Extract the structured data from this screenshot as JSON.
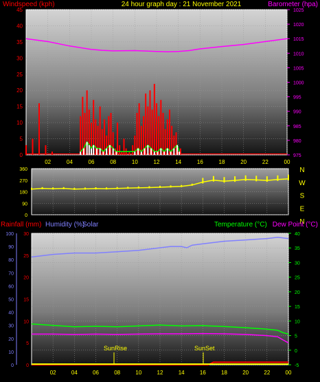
{
  "header": {
    "windspeed_label": "Windspeed (kph)",
    "title": "24 hour graph day : 21 November 2021",
    "barometer_label": "Barometer (hpa)"
  },
  "middle": {
    "direction_labels": [
      "N",
      "W",
      "S",
      "E",
      "N"
    ]
  },
  "lower_header": {
    "rainfall_label": "Rainfall (mm)",
    "humidity_label": "Humidity (%)",
    "solar_label": "Solar",
    "temperature_label": "Temperature (°C)",
    "dewpoint_label": "Dew Point (°C)"
  },
  "annotations": {
    "sunrise": "SunRise",
    "sunset": "SunSet"
  },
  "colors": {
    "wind": "#ff0000",
    "gust_light": "#ffffff",
    "solar": "#ffff00",
    "barometer": "#ff00ff",
    "humidity": "#8080ff",
    "temperature": "#00ff00",
    "dewpoint": "#ff00ff",
    "rain": "#ff0000"
  },
  "chart_data": [
    {
      "type": "line",
      "title": "24 hour graph day : 21 November 2021",
      "x_ticks": [
        "02",
        "04",
        "06",
        "08",
        "10",
        "12",
        "14",
        "16",
        "18",
        "20",
        "22",
        "00"
      ],
      "left_axis": {
        "label": "Windspeed (kph)",
        "ylim": [
          0,
          45
        ],
        "ticks": [
          0,
          5,
          10,
          15,
          20,
          25,
          30,
          35,
          40,
          45
        ]
      },
      "right_axis": {
        "label": "Barometer (hpa)",
        "ylim": [
          975,
          1025
        ],
        "ticks": [
          975,
          980,
          985,
          990,
          995,
          1000,
          1005,
          1010,
          1015,
          1020,
          1025
        ]
      },
      "series": [
        {
          "name": "Barometer (hpa)",
          "axis": "right",
          "x": [
            0,
            2,
            4,
            6,
            7,
            8,
            10,
            12,
            13,
            14,
            15,
            16,
            18,
            20,
            22,
            24
          ],
          "values": [
            1015,
            1014,
            1012.5,
            1011.3,
            1011,
            1010.8,
            1010.9,
            1010.6,
            1010.5,
            1010.6,
            1010.9,
            1011.5,
            1012.3,
            1013,
            1014,
            1015
          ]
        },
        {
          "name": "Windspeed (kph)",
          "axis": "left",
          "x": [
            0,
            0.6,
            1.2,
            1.8,
            2.4,
            5.0,
            5.2,
            5.4,
            5.6,
            5.8,
            6.0,
            6.2,
            6.4,
            6.6,
            6.8,
            7.0,
            7.2,
            7.4,
            7.6,
            7.8,
            8.0,
            8.2,
            8.4,
            8.6,
            8.8,
            9.0,
            9.2,
            9.5,
            9.8,
            10.0,
            10.2,
            10.4,
            10.6,
            10.8,
            11.0,
            11.2,
            11.4,
            11.6,
            11.8,
            12.0,
            12.2,
            12.4,
            12.6,
            12.8,
            13.0,
            13.2,
            13.4,
            13.6,
            13.8,
            14.0,
            14.2,
            14.6,
            15.0,
            16.0,
            18.0,
            20.0,
            22.0,
            24.0
          ],
          "values": [
            3,
            5,
            16,
            3,
            1,
            12,
            18,
            13,
            20,
            14,
            10,
            17,
            11,
            9,
            15,
            8,
            11,
            6,
            12,
            13,
            7,
            2,
            10,
            3,
            1,
            5,
            2,
            1,
            3,
            6,
            13,
            16,
            9,
            12,
            19,
            15,
            20,
            14,
            22,
            16,
            12,
            17,
            13,
            8,
            11,
            14,
            9,
            6,
            7,
            1,
            2,
            0,
            0,
            0,
            0,
            0,
            0,
            0
          ]
        },
        {
          "name": "Gust (kph)",
          "axis": "left",
          "x": [
            5.0,
            5.3,
            5.6,
            5.8,
            6.0,
            6.2,
            6.5,
            6.8,
            7.1,
            7.4,
            7.7,
            8.0,
            8.3,
            10.0,
            10.3,
            10.6,
            10.9,
            11.2,
            11.5,
            11.8,
            12.1,
            12.4,
            12.7,
            13.0,
            13.3,
            13.6,
            13.9,
            14.1
          ],
          "values": [
            1,
            2,
            4,
            3,
            2,
            3,
            2,
            2,
            1,
            2,
            3,
            2,
            1,
            1,
            2,
            1,
            2,
            3,
            2,
            1,
            1,
            2,
            1,
            2,
            1,
            2,
            3,
            1
          ]
        }
      ]
    },
    {
      "type": "scatter",
      "x_ticks": [
        "02",
        "04",
        "06",
        "08",
        "10",
        "12",
        "14",
        "16",
        "18",
        "20",
        "22",
        "00"
      ],
      "ylim": [
        0,
        360
      ],
      "y_ticks": [
        0,
        90,
        180,
        270,
        360
      ],
      "right_labels": [
        "N",
        "W",
        "S",
        "E",
        "N"
      ],
      "series": [
        {
          "name": "Wind Direction",
          "x": [
            0,
            1,
            2,
            3,
            4,
            5,
            6,
            7,
            8,
            9,
            10,
            11,
            12,
            13,
            14,
            15,
            16,
            17,
            18,
            19,
            20,
            21,
            22,
            23,
            24
          ],
          "values": [
            200,
            205,
            203,
            205,
            200,
            202,
            204,
            203,
            206,
            208,
            210,
            212,
            215,
            218,
            222,
            232,
            255,
            270,
            262,
            268,
            275,
            272,
            268,
            275,
            280
          ]
        }
      ]
    },
    {
      "type": "line",
      "x_ticks": [
        "02",
        "04",
        "06",
        "08",
        "10",
        "12",
        "14",
        "16",
        "18",
        "20",
        "22",
        "00"
      ],
      "outer_axis": {
        "label": "Humidity (%)",
        "ylim": [
          0,
          100
        ],
        "ticks": [
          0,
          10,
          20,
          30,
          40,
          50,
          60,
          70,
          80,
          90,
          100
        ]
      },
      "inner_axis": {
        "label": "Rainfall (mm)",
        "ylim": [
          0,
          30
        ],
        "ticks": [
          0,
          5,
          10,
          15,
          20,
          25,
          30
        ]
      },
      "right_axis": {
        "label": "Temperature (°C)",
        "ylim": [
          -5,
          40
        ],
        "ticks": [
          -5,
          0,
          5,
          10,
          15,
          20,
          25,
          30,
          35,
          40
        ]
      },
      "series": [
        {
          "name": "Humidity (%)",
          "axis": "outer",
          "x": [
            0,
            1,
            2,
            4,
            6,
            8,
            10,
            12,
            13,
            14,
            14.5,
            15,
            16,
            18,
            20,
            22,
            23,
            24
          ],
          "values": [
            82,
            83,
            84,
            85,
            85,
            86,
            87,
            89,
            90,
            90,
            89,
            91,
            92,
            94,
            95,
            96,
            97,
            96
          ]
        },
        {
          "name": "Temperature (°C)",
          "axis": "right",
          "x": [
            0,
            2,
            4,
            6,
            8,
            10,
            12,
            14,
            16,
            18,
            20,
            22,
            23,
            23.5,
            24
          ],
          "values": [
            9,
            8.5,
            8,
            8.2,
            8,
            8.3,
            8.6,
            8.3,
            8.4,
            8.1,
            7.7,
            7.2,
            6.8,
            6,
            5.5
          ]
        },
        {
          "name": "Dew Point (°C)",
          "axis": "right",
          "x": [
            0,
            2,
            4,
            6,
            8,
            10,
            12,
            14,
            16,
            18,
            20,
            22,
            23,
            23.5,
            24
          ],
          "values": [
            5.5,
            5.5,
            5.4,
            5.5,
            5.4,
            5.5,
            5.6,
            5.6,
            5.7,
            5.6,
            5.4,
            5.0,
            4.6,
            3.5,
            2.5
          ]
        },
        {
          "name": "Rainfall (mm)",
          "axis": "inner",
          "x": [
            0,
            16.5,
            17,
            24
          ],
          "values": [
            0,
            0,
            0.6,
            0.6
          ]
        },
        {
          "name": "Solar",
          "axis": "inner",
          "x": [
            0,
            24
          ],
          "values": [
            0,
            0
          ]
        }
      ]
    }
  ]
}
